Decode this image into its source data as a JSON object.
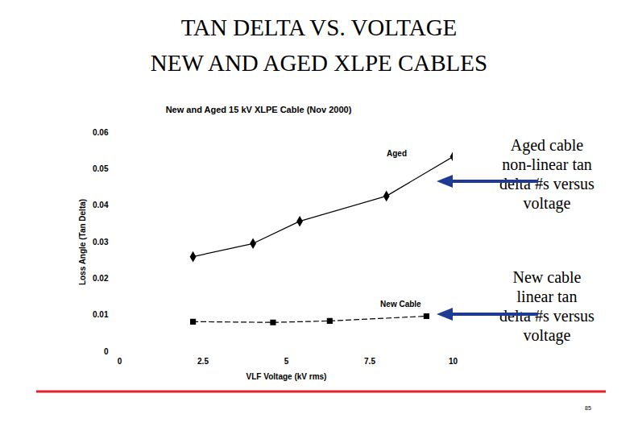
{
  "slide": {
    "title": [
      "TAN DELTA VS. VOLTAGE",
      "NEW AND AGED XLPE CABLES"
    ],
    "page_number": "85"
  },
  "chart_data": {
    "type": "line",
    "title": "New and Aged 15 kV XLPE Cable (Nov 2000)",
    "xlabel": "VLF Voltage (kV rms)",
    "ylabel": "Loss Angle (Tan Delta)",
    "xlim": [
      0,
      10
    ],
    "xticks": [
      0,
      2.5,
      5,
      7.5,
      10
    ],
    "ylim": [
      0,
      0.06
    ],
    "yticks": [
      0,
      0.01,
      0.02,
      0.03,
      0.04,
      0.05,
      0.06
    ],
    "grid": false,
    "series": [
      {
        "name": "Aged",
        "color": "#000000",
        "marker": "diamond",
        "line_style": "solid",
        "x": [
          2.2,
          4.0,
          5.4,
          8.0,
          10.0
        ],
        "values": [
          0.026,
          0.0296,
          0.0357,
          0.0426,
          0.0534
        ]
      },
      {
        "name": "New Cable",
        "color": "#000000",
        "marker": "square",
        "line_style": "dashed",
        "x": [
          2.2,
          4.6,
          6.3,
          9.2
        ],
        "values": [
          0.0082,
          0.008,
          0.0084,
          0.0097
        ]
      }
    ],
    "annotations": [
      {
        "text": [
          "Aged cable",
          "non-linear tan",
          "delta #s versus",
          "voltage"
        ],
        "target": "Aged"
      },
      {
        "text": [
          "New cable",
          "linear tan",
          "delta #s versus",
          "voltage"
        ],
        "target": "New Cable"
      }
    ]
  }
}
